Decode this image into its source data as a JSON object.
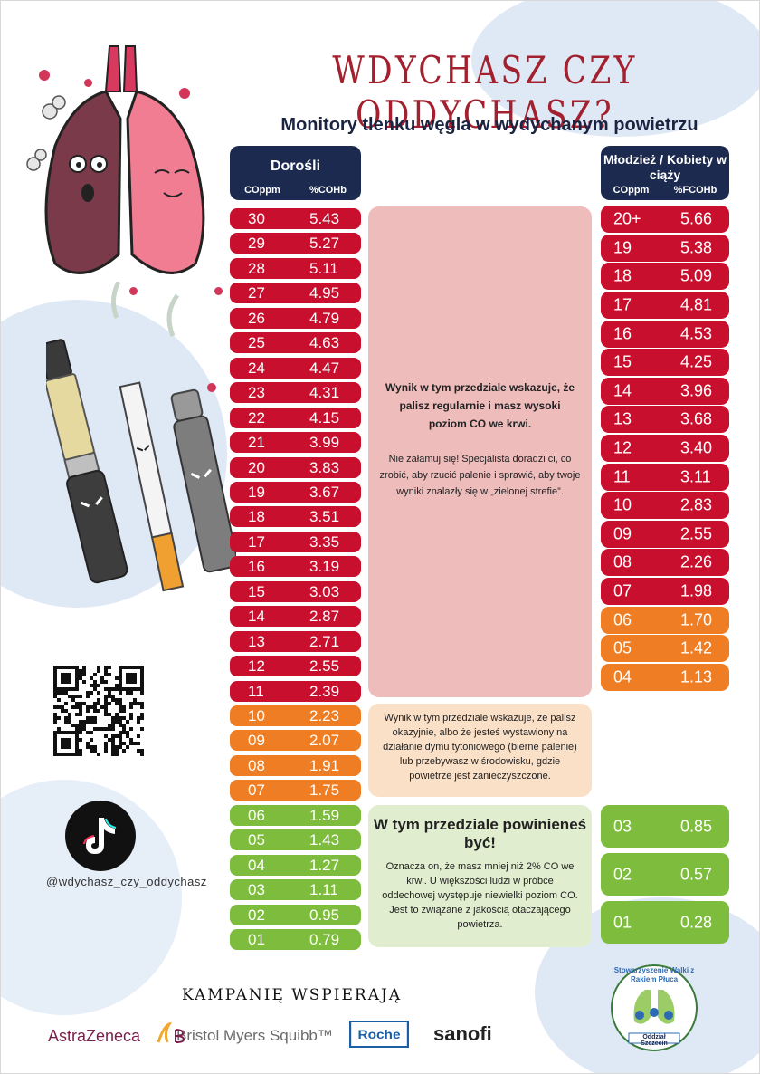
{
  "title": "WDYCHASZ CZY ODDYCHASZ?",
  "subtitle": "Monitory tlenku węgla w wydychanym powietrzu",
  "adults": {
    "header": "Dorośli",
    "col1": "COppm",
    "col2": "%COHb",
    "rows": [
      {
        "c": "30",
        "v": "5.43",
        "zone": "red"
      },
      {
        "c": "29",
        "v": "5.27",
        "zone": "red"
      },
      {
        "c": "28",
        "v": "5.11",
        "zone": "red"
      },
      {
        "c": "27",
        "v": "4.95",
        "zone": "red"
      },
      {
        "c": "26",
        "v": "4.79",
        "zone": "red"
      },
      {
        "c": "25",
        "v": "4.63",
        "zone": "red"
      },
      {
        "c": "24",
        "v": "4.47",
        "zone": "red"
      },
      {
        "c": "23",
        "v": "4.31",
        "zone": "red"
      },
      {
        "c": "22",
        "v": "4.15",
        "zone": "red"
      },
      {
        "c": "21",
        "v": "3.99",
        "zone": "red"
      },
      {
        "c": "20",
        "v": "3.83",
        "zone": "red"
      },
      {
        "c": "19",
        "v": "3.67",
        "zone": "red"
      },
      {
        "c": "18",
        "v": "3.51",
        "zone": "red"
      },
      {
        "c": "17",
        "v": "3.35",
        "zone": "red"
      },
      {
        "c": "16",
        "v": "3.19",
        "zone": "red"
      },
      {
        "c": "15",
        "v": "3.03",
        "zone": "red"
      },
      {
        "c": "14",
        "v": "2.87",
        "zone": "red"
      },
      {
        "c": "13",
        "v": "2.71",
        "zone": "red"
      },
      {
        "c": "12",
        "v": "2.55",
        "zone": "red"
      },
      {
        "c": "11",
        "v": "2.39",
        "zone": "red"
      },
      {
        "c": "10",
        "v": "2.23",
        "zone": "orange"
      },
      {
        "c": "09",
        "v": "2.07",
        "zone": "orange"
      },
      {
        "c": "08",
        "v": "1.91",
        "zone": "orange"
      },
      {
        "c": "07",
        "v": "1.75",
        "zone": "orange"
      },
      {
        "c": "06",
        "v": "1.59",
        "zone": "green"
      },
      {
        "c": "05",
        "v": "1.43",
        "zone": "green"
      },
      {
        "c": "04",
        "v": "1.27",
        "zone": "green"
      },
      {
        "c": "03",
        "v": "1.11",
        "zone": "green"
      },
      {
        "c": "02",
        "v": "0.95",
        "zone": "green"
      },
      {
        "c": "01",
        "v": "0.79",
        "zone": "green"
      }
    ]
  },
  "youth": {
    "header": "Młodzież / Kobiety w ciąży",
    "col1": "COppm",
    "col2": "%FCOHb",
    "rows": [
      {
        "c": "20+",
        "v": "5.66",
        "zone": "red"
      },
      {
        "c": "19",
        "v": "5.38",
        "zone": "red"
      },
      {
        "c": "18",
        "v": "5.09",
        "zone": "red"
      },
      {
        "c": "17",
        "v": "4.81",
        "zone": "red"
      },
      {
        "c": "16",
        "v": "4.53",
        "zone": "red"
      },
      {
        "c": "15",
        "v": "4.25",
        "zone": "red"
      },
      {
        "c": "14",
        "v": "3.96",
        "zone": "red"
      },
      {
        "c": "13",
        "v": "3.68",
        "zone": "red"
      },
      {
        "c": "12",
        "v": "3.40",
        "zone": "red"
      },
      {
        "c": "11",
        "v": "3.11",
        "zone": "red"
      },
      {
        "c": "10",
        "v": "2.83",
        "zone": "red"
      },
      {
        "c": "09",
        "v": "2.55",
        "zone": "red"
      },
      {
        "c": "08",
        "v": "2.26",
        "zone": "red"
      },
      {
        "c": "07",
        "v": "1.98",
        "zone": "red"
      },
      {
        "c": "06",
        "v": "1.70",
        "zone": "orange"
      },
      {
        "c": "05",
        "v": "1.42",
        "zone": "orange"
      },
      {
        "c": "04",
        "v": "1.13",
        "zone": "orange"
      },
      {
        "c": "03",
        "v": "0.85",
        "zone": "green"
      },
      {
        "c": "02",
        "v": "0.57",
        "zone": "green"
      },
      {
        "c": "01",
        "v": "0.28",
        "zone": "green"
      }
    ]
  },
  "info": {
    "red_bold": "Wynik w tym przedziale wskazuje, że palisz regularnie i masz wysoki poziom CO we krwi.",
    "red_text": "Nie załamuj się! Specjalista doradzi ci, co zrobić, aby rzucić palenie i sprawić, aby twoje wyniki znalazły się w „zielonej strefie”.",
    "orange_text": "Wynik w tym przedziale wskazuje, że palisz okazyjnie, albo że jesteś wystawiony na działanie dymu tytoniowego (bierne palenie) lub przebywasz w środowisku, gdzie powietrze jest zanieczyszczone.",
    "green_title": "W tym przedziale powinieneś być!",
    "green_text": "Oznacza on, że masz mniej niż 2% CO we krwi. U większości ludzi w próbce oddechowej występuje niewielki poziom CO. Jest to związane z jakością otaczającego powietrza."
  },
  "social": {
    "handle": "@wdychasz_czy_oddychasz",
    "icon": "tiktok-icon"
  },
  "sponsors": {
    "heading": "KAMPANIĘ WSPIERAJĄ",
    "logos": [
      "AstraZeneca",
      "Bristol Myers Squibb™",
      "Roche",
      "sanofi"
    ]
  },
  "org_badge": {
    "name": "Stowarzyszenie Walki z Rakiem Płuca",
    "branch": "Oddział Szczecin"
  },
  "colors": {
    "red": "#c8102e",
    "orange": "#ee7d23",
    "green": "#7dbc3c",
    "navy": "#1b2a4e",
    "title": "#a3202e"
  }
}
